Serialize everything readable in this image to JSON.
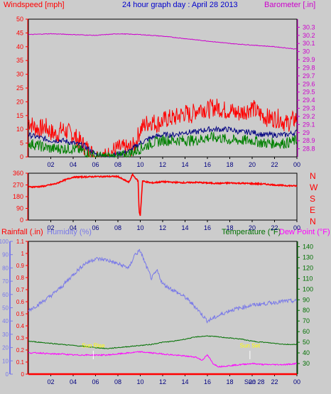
{
  "title": "24 hour graph day : April 28 2013",
  "colors": {
    "background": "#cccccc",
    "wind": "#ff0000",
    "gust_avg": "#000080",
    "gust_low": "#008000",
    "barometer": "#cc00cc",
    "humidity": "#7a7ae8",
    "temperature": "#007000",
    "dewpoint": "#ff00ff",
    "rain": "#ff0000",
    "sun": "#ffff00",
    "axis": "#000000",
    "grid_title": "#0000cc"
  },
  "chart_data": [
    {
      "type": "line",
      "panel": "wind_baro",
      "xlabel": "",
      "x_ticks": [
        "02",
        "04",
        "06",
        "08",
        "10",
        "12",
        "14",
        "16",
        "18",
        "20",
        "22",
        "00"
      ],
      "left_axis": {
        "label": "Windspeed [mph]",
        "ylim": [
          0,
          50
        ],
        "ticks": [
          "0",
          "5",
          "10",
          "15",
          "20",
          "25",
          "30",
          "35",
          "40",
          "45",
          "50"
        ]
      },
      "right_axis": {
        "label": "Barometer [.in]",
        "ylim": [
          28.7,
          30.4
        ],
        "ticks": [
          "28.8",
          "28.9",
          "29",
          "29.1",
          "29.2",
          "29.3",
          "29.4",
          "29.5",
          "29.6",
          "29.7",
          "29.8",
          "29.9",
          "30",
          "30.1",
          "30.2",
          "30.3"
        ]
      },
      "series": [
        {
          "axis": "left",
          "hours": [
            0,
            0.5,
            1,
            1.5,
            2,
            2.5,
            3,
            3.5,
            4,
            4.5,
            5,
            5.5,
            6,
            6.5,
            7,
            7.5,
            8,
            8.5,
            9,
            9.5,
            10,
            10.5,
            11,
            11.5,
            12,
            12.5,
            13,
            13.5,
            14,
            14.5,
            15,
            15.5,
            16,
            16.5,
            17,
            17.5,
            18,
            18.5,
            19,
            19.5,
            20,
            20.5,
            21,
            21.5,
            22,
            22.5,
            23,
            23.5,
            24
          ],
          "values": [
            13,
            11,
            10,
            11,
            9,
            8,
            10,
            9,
            8,
            6,
            4,
            2,
            0,
            0,
            0,
            2,
            3,
            3,
            3,
            4,
            10,
            12,
            13,
            12,
            13,
            14,
            14,
            15,
            16,
            15,
            17,
            18,
            17,
            18,
            18,
            17,
            17,
            16,
            16,
            17,
            18,
            16,
            15,
            14,
            14,
            14,
            12,
            13,
            14
          ]
        },
        {
          "axis": "left",
          "hours": [
            0,
            1,
            2,
            3,
            4,
            5,
            6,
            7,
            8,
            9,
            10,
            11,
            12,
            13,
            14,
            15,
            16,
            17,
            18,
            19,
            20,
            21,
            22,
            23,
            24
          ],
          "values": [
            8,
            7,
            6,
            6,
            5,
            4,
            1,
            0,
            1,
            2,
            5,
            7,
            8,
            8,
            9,
            9,
            10,
            10,
            10,
            9,
            9,
            8,
            8,
            8,
            9
          ]
        },
        {
          "axis": "left",
          "hours": [
            0,
            1,
            2,
            3,
            4,
            5,
            6,
            7,
            8,
            9,
            10,
            11,
            12,
            13,
            14,
            15,
            16,
            17,
            18,
            19,
            20,
            21,
            22,
            23,
            24
          ],
          "values": [
            5,
            4,
            3,
            3,
            3,
            2,
            0,
            0,
            0,
            1,
            3,
            5,
            6,
            6,
            6,
            6,
            7,
            7,
            6,
            6,
            6,
            5,
            5,
            5,
            6
          ]
        },
        {
          "axis": "right",
          "hours": [
            0,
            2,
            4,
            6,
            8,
            10,
            12,
            14,
            16,
            18,
            20,
            22,
            24
          ],
          "values": [
            30.21,
            30.22,
            30.21,
            30.2,
            30.22,
            30.21,
            30.19,
            30.16,
            30.13,
            30.1,
            30.08,
            30.06,
            30.03
          ]
        }
      ]
    },
    {
      "type": "line",
      "panel": "wind_direction",
      "left_axis": {
        "ylim": [
          0,
          360
        ],
        "ticks": [
          "0",
          "90",
          "180",
          "270",
          "360"
        ]
      },
      "right_axis": {
        "ticks": [
          "N",
          "W",
          "S",
          "E",
          "N"
        ]
      },
      "series": [
        {
          "hours": [
            0,
            0.5,
            1,
            1.5,
            2,
            2.5,
            3,
            3.5,
            4,
            5,
            6,
            7,
            8,
            8.5,
            9,
            9.3,
            9.6,
            9.8,
            9.9,
            10,
            10.2,
            11,
            12,
            13,
            14,
            15,
            16,
            17,
            18,
            19,
            20,
            21,
            22,
            23,
            24
          ],
          "values": [
            255,
            255,
            257,
            262,
            272,
            280,
            300,
            315,
            330,
            332,
            334,
            335,
            335,
            310,
            290,
            350,
            320,
            300,
            60,
            35,
            300,
            285,
            295,
            290,
            287,
            290,
            285,
            282,
            285,
            283,
            280,
            277,
            270,
            265,
            262
          ]
        }
      ]
    },
    {
      "type": "line",
      "panel": "rain_hum_temp",
      "left_axis": {
        "label": "Rainfall (.in)",
        "ylim": [
          0,
          1.1
        ],
        "ticks": [
          "0",
          "0.1",
          "0.2",
          "0.3",
          "0.4",
          "0.5",
          "0.6",
          "0.7",
          "0.8",
          "0.9",
          "1",
          "1.1"
        ]
      },
      "humidity_axis": {
        "label": "Humidity (%)",
        "ylim": [
          0,
          100
        ],
        "ticks": [
          "0",
          "10",
          "20",
          "30",
          "40",
          "50",
          "60",
          "70",
          "80",
          "90",
          "100"
        ]
      },
      "right_axis": {
        "label": "Temperature (°F)",
        "label2": "Dew Point (°F)",
        "ylim": [
          20,
          145
        ],
        "ticks": [
          "30",
          "40",
          "50",
          "60",
          "70",
          "80",
          "90",
          "100",
          "110",
          "120",
          "130",
          "140"
        ]
      },
      "series": [
        {
          "axis": "humidity",
          "hours": [
            0,
            1,
            2,
            3,
            4,
            5,
            6,
            7,
            8,
            9,
            9.5,
            10,
            10.5,
            11,
            11.5,
            12,
            13,
            14,
            15,
            15.5,
            16,
            16.5,
            17,
            18,
            19,
            20,
            21,
            22,
            23,
            24
          ],
          "values": [
            48,
            53,
            59,
            66,
            75,
            83,
            87,
            86,
            83,
            80,
            90,
            93,
            82,
            72,
            78,
            68,
            63,
            58,
            50,
            45,
            40,
            42,
            44,
            48,
            50,
            52,
            53,
            54,
            55,
            55
          ]
        },
        {
          "axis": "temperature",
          "hours": [
            0,
            1,
            2,
            3,
            4,
            5,
            6,
            7,
            8,
            9,
            10,
            11,
            12,
            13,
            14,
            15,
            16,
            17,
            18,
            19,
            20,
            21,
            22,
            23,
            24
          ],
          "values": [
            51,
            50,
            49,
            48,
            47,
            46,
            45,
            44,
            45,
            46,
            47,
            48,
            50,
            51,
            53,
            55,
            56,
            55,
            54,
            53,
            51,
            50,
            49,
            48,
            48
          ]
        },
        {
          "axis": "temperature",
          "hours": [
            0,
            1,
            2,
            3,
            4,
            5,
            6,
            7,
            8,
            9,
            10,
            11,
            12,
            13,
            14,
            15,
            15.5,
            16,
            16.5,
            17,
            18,
            19,
            20,
            21,
            22,
            23,
            24
          ],
          "values": [
            40,
            40,
            39,
            39,
            38,
            38,
            38,
            38,
            39,
            40,
            41,
            40,
            39,
            38,
            37,
            36,
            33,
            38,
            30,
            27,
            28,
            29,
            30,
            29,
            29,
            29,
            30
          ]
        },
        {
          "axis": "rain",
          "hours": [
            0,
            24
          ],
          "values": [
            0,
            0
          ]
        }
      ],
      "annotations": [
        {
          "text": "Sun Rise",
          "hour": 5.8
        },
        {
          "text": "Sun Set",
          "hour": 19.8
        }
      ],
      "x_ticks": [
        "02",
        "04",
        "06",
        "08",
        "10",
        "12",
        "14",
        "16",
        "18",
        "20",
        "22",
        "00"
      ],
      "x_extra": "Sun 28"
    }
  ]
}
